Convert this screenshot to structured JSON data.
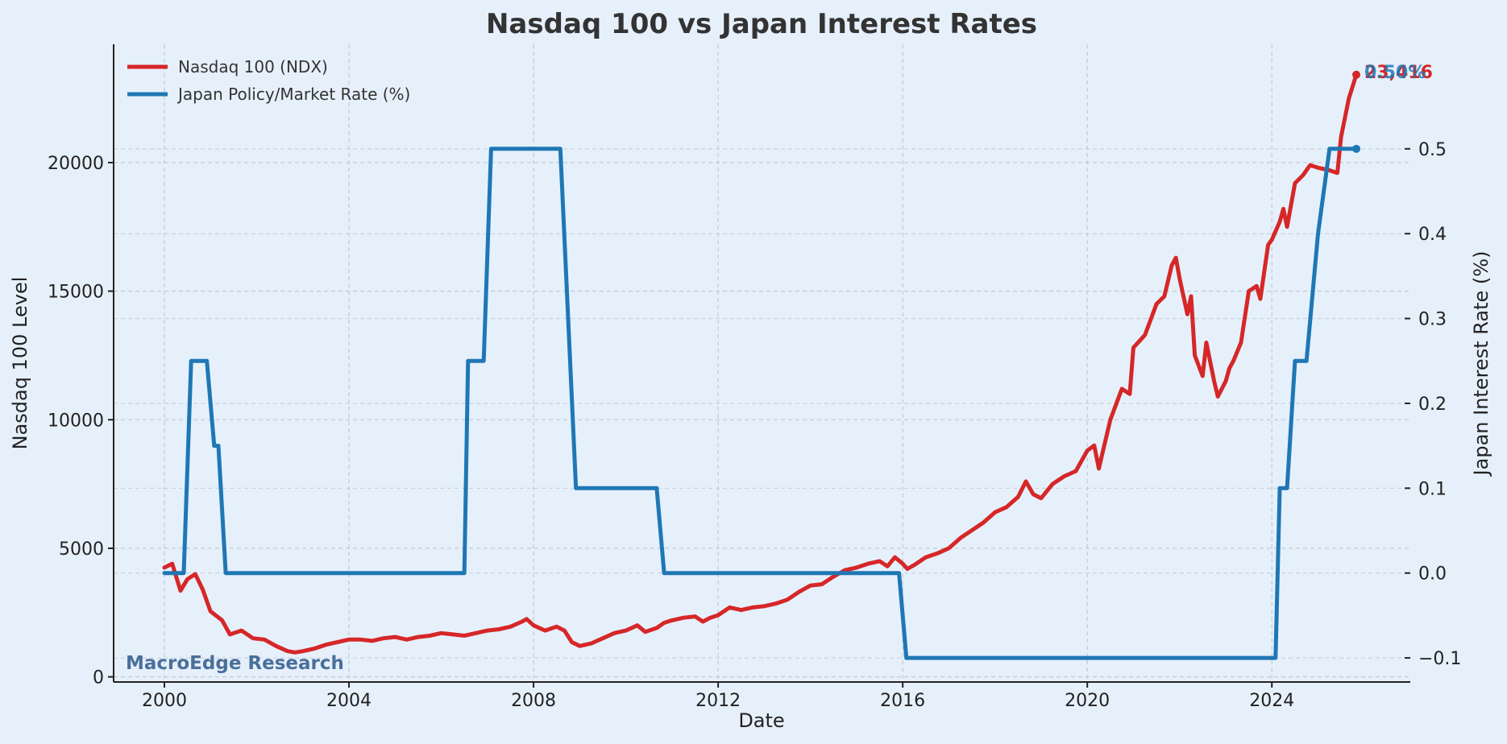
{
  "chart_data": {
    "type": "line",
    "title": "Nasdaq 100 vs Japan Interest Rates",
    "xlabel": "Date",
    "ylabel_left": "Nasdaq 100 Level",
    "ylabel_right": "Japan Interest Rate (%)",
    "x_ticks": [
      "2000",
      "2004",
      "2008",
      "2012",
      "2016",
      "2020",
      "2024"
    ],
    "y_left_ticks": [
      "0",
      "5000",
      "10000",
      "15000",
      "20000"
    ],
    "y_right_ticks": [
      "−0.1",
      "0.0",
      "0.1",
      "0.2",
      "0.3",
      "0.4",
      "0.5"
    ],
    "ylim_left": [
      -200,
      24600
    ],
    "ylim_right": [
      -0.1284,
      0.6232
    ],
    "xlim": [
      1998.9,
      2027.0
    ],
    "grid": true,
    "legend_position": "top-left",
    "watermark": "MacroEdge Research",
    "end_labels": [
      "23,416",
      "0.50%"
    ],
    "colors": {
      "ndx": "#d62728",
      "rate": "#1f77b4",
      "background": "#e6f0fb"
    },
    "series": [
      {
        "name": "Nasdaq 100 (NDX)",
        "axis": "left",
        "points": [
          [
            2000.0,
            4250
          ],
          [
            2000.17,
            4400
          ],
          [
            2000.35,
            3350
          ],
          [
            2000.5,
            3800
          ],
          [
            2000.67,
            4000
          ],
          [
            2000.83,
            3400
          ],
          [
            2001.0,
            2550
          ],
          [
            2001.25,
            2200
          ],
          [
            2001.42,
            1650
          ],
          [
            2001.67,
            1800
          ],
          [
            2001.92,
            1500
          ],
          [
            2002.17,
            1450
          ],
          [
            2002.42,
            1200
          ],
          [
            2002.67,
            1000
          ],
          [
            2002.83,
            950
          ],
          [
            2003.0,
            1000
          ],
          [
            2003.25,
            1100
          ],
          [
            2003.5,
            1250
          ],
          [
            2003.75,
            1350
          ],
          [
            2004.0,
            1450
          ],
          [
            2004.25,
            1450
          ],
          [
            2004.5,
            1400
          ],
          [
            2004.75,
            1500
          ],
          [
            2005.0,
            1550
          ],
          [
            2005.25,
            1450
          ],
          [
            2005.5,
            1550
          ],
          [
            2005.75,
            1600
          ],
          [
            2006.0,
            1700
          ],
          [
            2006.25,
            1650
          ],
          [
            2006.5,
            1600
          ],
          [
            2006.75,
            1700
          ],
          [
            2007.0,
            1800
          ],
          [
            2007.25,
            1850
          ],
          [
            2007.5,
            1950
          ],
          [
            2007.75,
            2150
          ],
          [
            2007.85,
            2250
          ],
          [
            2008.0,
            2000
          ],
          [
            2008.25,
            1800
          ],
          [
            2008.5,
            1950
          ],
          [
            2008.67,
            1800
          ],
          [
            2008.83,
            1350
          ],
          [
            2009.0,
            1200
          ],
          [
            2009.25,
            1300
          ],
          [
            2009.5,
            1500
          ],
          [
            2009.75,
            1700
          ],
          [
            2010.0,
            1800
          ],
          [
            2010.25,
            2000
          ],
          [
            2010.42,
            1750
          ],
          [
            2010.67,
            1900
          ],
          [
            2010.83,
            2100
          ],
          [
            2011.0,
            2200
          ],
          [
            2011.25,
            2300
          ],
          [
            2011.5,
            2350
          ],
          [
            2011.67,
            2150
          ],
          [
            2011.83,
            2300
          ],
          [
            2012.0,
            2400
          ],
          [
            2012.25,
            2700
          ],
          [
            2012.5,
            2600
          ],
          [
            2012.75,
            2700
          ],
          [
            2013.0,
            2750
          ],
          [
            2013.25,
            2850
          ],
          [
            2013.5,
            3000
          ],
          [
            2013.75,
            3300
          ],
          [
            2014.0,
            3550
          ],
          [
            2014.25,
            3600
          ],
          [
            2014.5,
            3900
          ],
          [
            2014.75,
            4150
          ],
          [
            2015.0,
            4250
          ],
          [
            2015.25,
            4400
          ],
          [
            2015.5,
            4500
          ],
          [
            2015.67,
            4300
          ],
          [
            2015.83,
            4650
          ],
          [
            2016.0,
            4400
          ],
          [
            2016.1,
            4200
          ],
          [
            2016.25,
            4350
          ],
          [
            2016.5,
            4650
          ],
          [
            2016.75,
            4800
          ],
          [
            2017.0,
            5000
          ],
          [
            2017.25,
            5400
          ],
          [
            2017.5,
            5700
          ],
          [
            2017.75,
            6000
          ],
          [
            2018.0,
            6400
          ],
          [
            2018.25,
            6600
          ],
          [
            2018.5,
            7000
          ],
          [
            2018.67,
            7600
          ],
          [
            2018.83,
            7100
          ],
          [
            2019.0,
            6950
          ],
          [
            2019.25,
            7500
          ],
          [
            2019.5,
            7800
          ],
          [
            2019.75,
            8000
          ],
          [
            2020.0,
            8800
          ],
          [
            2020.15,
            9000
          ],
          [
            2020.25,
            8100
          ],
          [
            2020.5,
            10000
          ],
          [
            2020.75,
            11200
          ],
          [
            2020.92,
            11000
          ],
          [
            2021.0,
            12800
          ],
          [
            2021.25,
            13300
          ],
          [
            2021.5,
            14500
          ],
          [
            2021.67,
            14800
          ],
          [
            2021.83,
            16000
          ],
          [
            2021.92,
            16300
          ],
          [
            2022.0,
            15500
          ],
          [
            2022.17,
            14100
          ],
          [
            2022.25,
            14800
          ],
          [
            2022.33,
            12500
          ],
          [
            2022.5,
            11700
          ],
          [
            2022.58,
            13000
          ],
          [
            2022.75,
            11500
          ],
          [
            2022.83,
            10900
          ],
          [
            2023.0,
            11500
          ],
          [
            2023.08,
            12000
          ],
          [
            2023.17,
            12300
          ],
          [
            2023.33,
            13000
          ],
          [
            2023.5,
            15000
          ],
          [
            2023.67,
            15200
          ],
          [
            2023.75,
            14700
          ],
          [
            2023.92,
            16800
          ],
          [
            2024.0,
            17000
          ],
          [
            2024.17,
            17700
          ],
          [
            2024.25,
            18200
          ],
          [
            2024.33,
            17500
          ],
          [
            2024.5,
            19200
          ],
          [
            2024.67,
            19500
          ],
          [
            2024.83,
            19900
          ],
          [
            2025.0,
            19800
          ],
          [
            2025.25,
            19700
          ],
          [
            2025.33,
            19650
          ],
          [
            2025.42,
            19600
          ],
          [
            2025.5,
            21000
          ],
          [
            2025.67,
            22500
          ],
          [
            2025.83,
            23416
          ]
        ]
      },
      {
        "name": "Japan Policy/Market Rate (%)",
        "axis": "right",
        "points": [
          [
            2000.0,
            0.0
          ],
          [
            2000.42,
            0.0
          ],
          [
            2000.58,
            0.25
          ],
          [
            2000.92,
            0.25
          ],
          [
            2001.08,
            0.15
          ],
          [
            2001.17,
            0.15
          ],
          [
            2001.33,
            0.0
          ],
          [
            2006.5,
            0.0
          ],
          [
            2006.58,
            0.25
          ],
          [
            2006.92,
            0.25
          ],
          [
            2007.08,
            0.5
          ],
          [
            2008.58,
            0.5
          ],
          [
            2008.92,
            0.1
          ],
          [
            2010.67,
            0.1
          ],
          [
            2010.83,
            0.0
          ],
          [
            2015.92,
            0.0
          ],
          [
            2016.08,
            -0.1
          ],
          [
            2024.08,
            -0.1
          ],
          [
            2024.17,
            0.1
          ],
          [
            2024.33,
            0.1
          ],
          [
            2024.5,
            0.25
          ],
          [
            2024.75,
            0.25
          ],
          [
            2025.0,
            0.4
          ],
          [
            2025.25,
            0.5
          ],
          [
            2025.83,
            0.5
          ]
        ]
      }
    ]
  }
}
